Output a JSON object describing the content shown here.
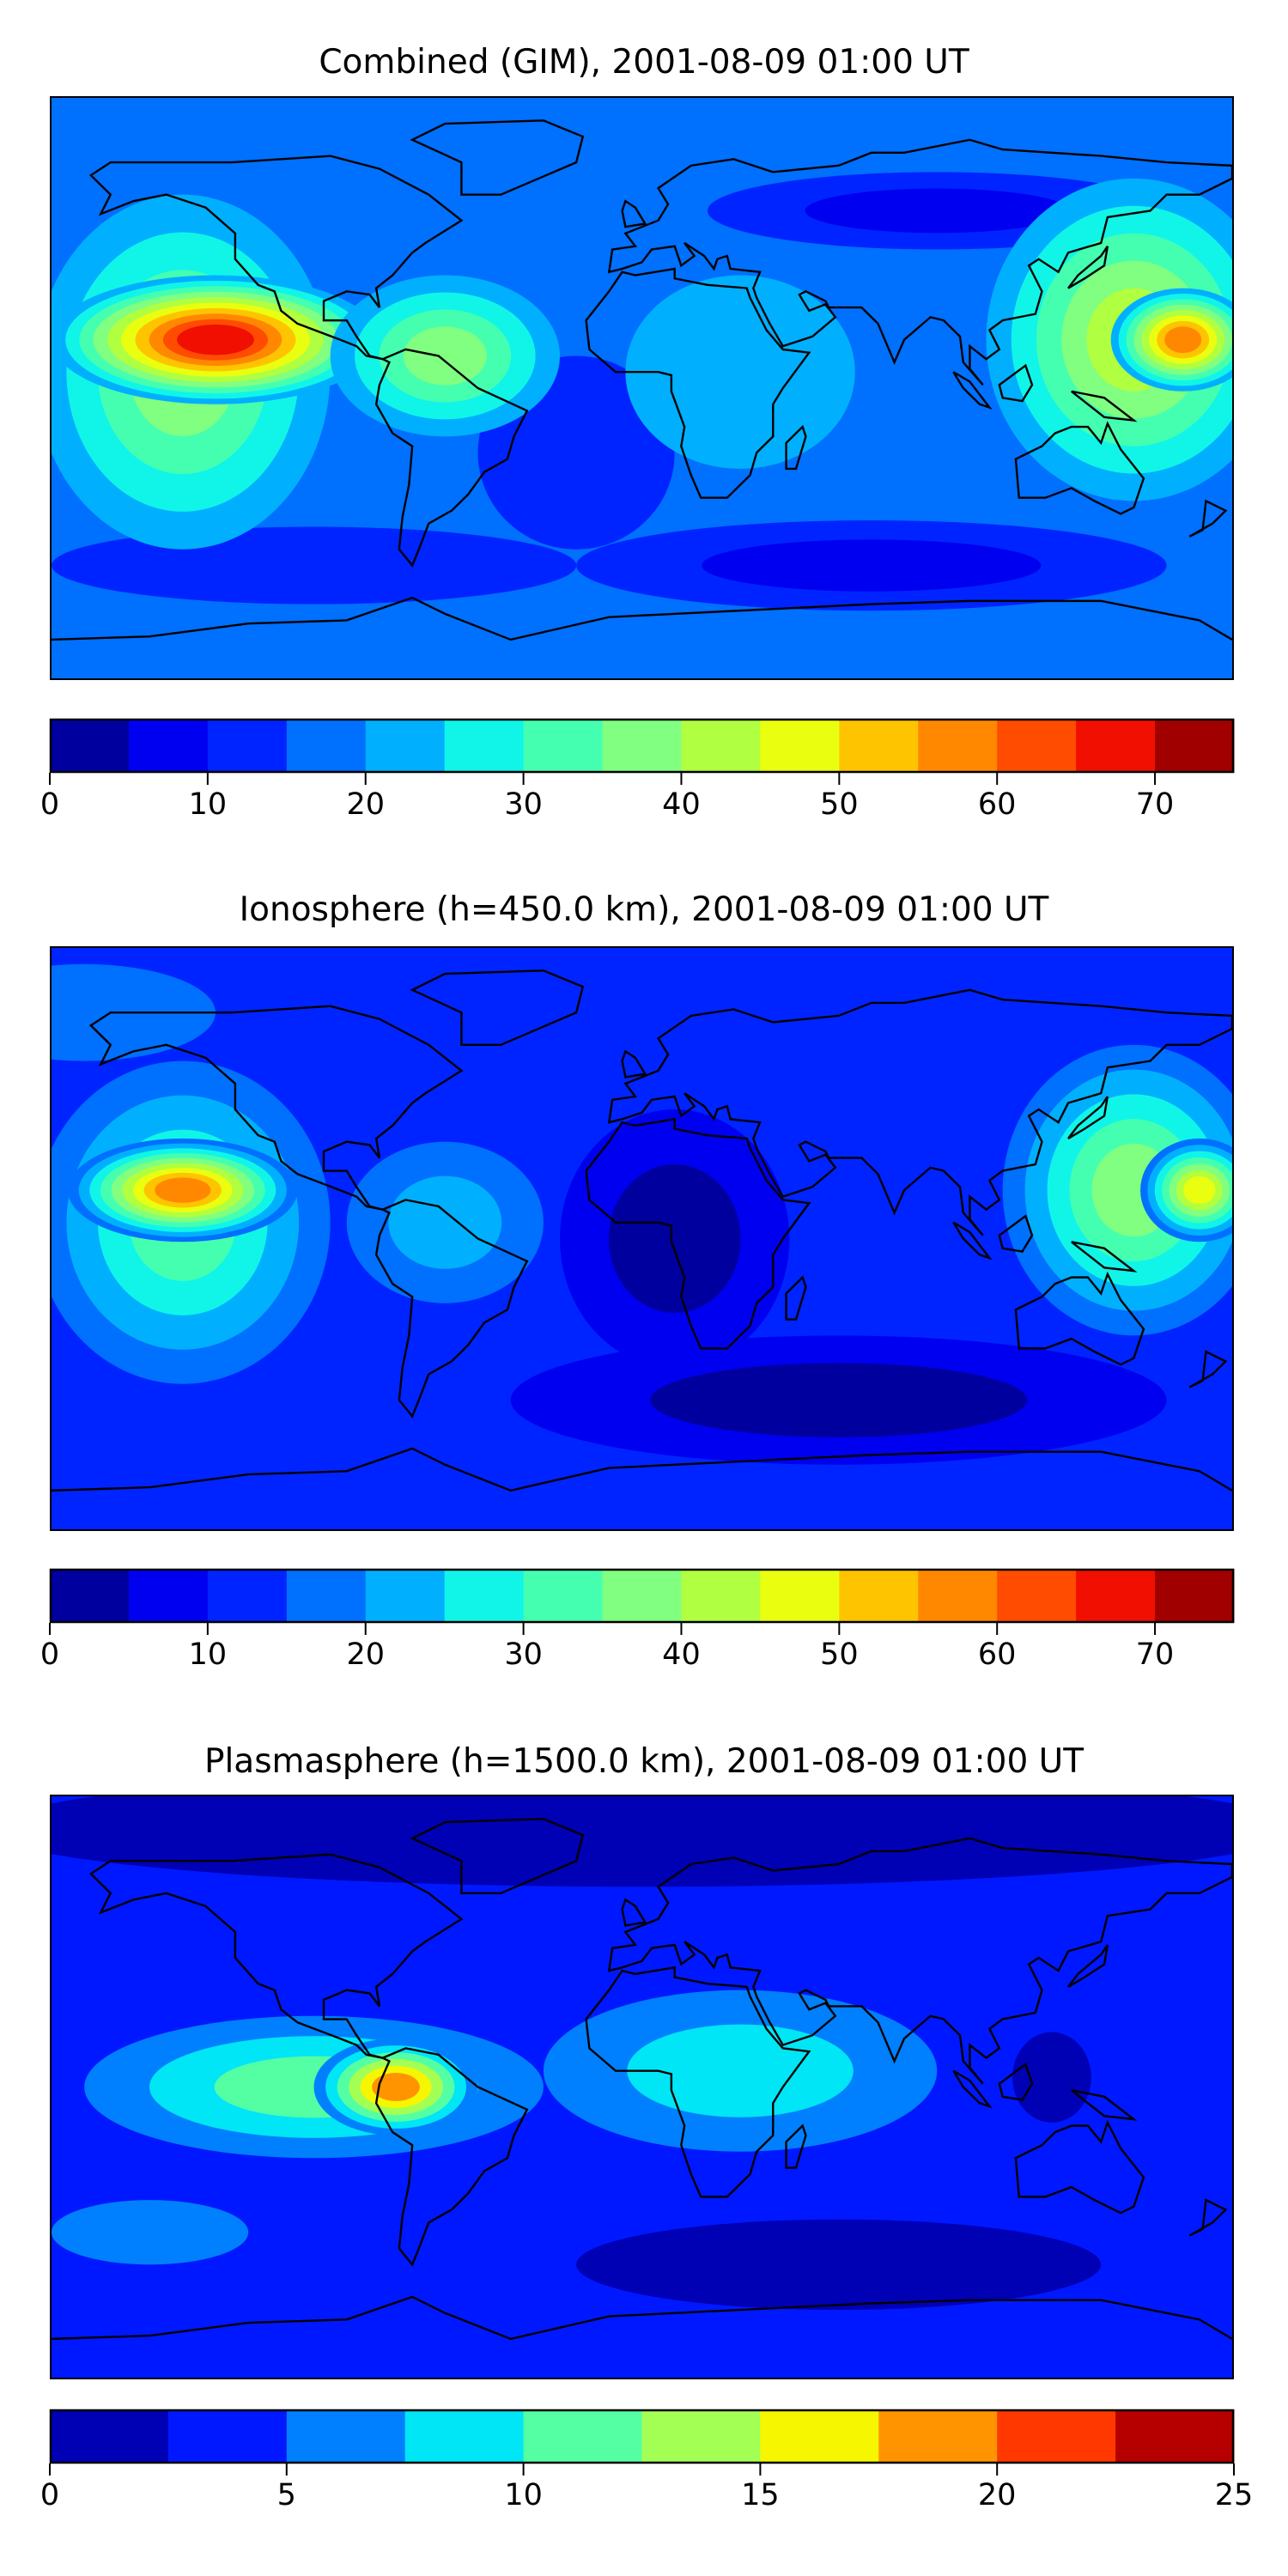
{
  "chart_data": [
    {
      "type": "heatmap",
      "title": "Combined (GIM), 2001-08-09 01:00 UT",
      "xlabel": "",
      "ylabel": "",
      "lon_range": [
        -180,
        180
      ],
      "lat_range": [
        -90,
        90
      ],
      "colorbar": {
        "levels": [
          0,
          5,
          10,
          15,
          20,
          25,
          30,
          35,
          40,
          45,
          50,
          55,
          60,
          65,
          70,
          75
        ],
        "ticks": [
          "0",
          "10",
          "20",
          "30",
          "40",
          "50",
          "60",
          "70"
        ],
        "tick_values": [
          0,
          10,
          20,
          30,
          40,
          50,
          60,
          70
        ],
        "colors": [
          "#00009f",
          "#0000f0",
          "#0024ff",
          "#0070ff",
          "#00b0ff",
          "#10f5e8",
          "#45ffb0",
          "#80ff80",
          "#b0ff40",
          "#eaff10",
          "#ffc400",
          "#ff8800",
          "#ff4c00",
          "#f00f00",
          "#a00000"
        ]
      },
      "base_value": 17,
      "features": [
        {
          "lon": 90,
          "lat": 55,
          "value": 8,
          "spread_deg": [
            70,
            12
          ]
        },
        {
          "lon": 70,
          "lat": -55,
          "value": 6,
          "spread_deg": [
            90,
            14
          ]
        },
        {
          "lon": -100,
          "lat": -55,
          "value": 12,
          "spread_deg": [
            80,
            12
          ]
        },
        {
          "lon": -20,
          "lat": -20,
          "value": 13,
          "spread_deg": [
            30,
            30
          ]
        },
        {
          "lon": 30,
          "lat": 5,
          "value": 24,
          "spread_deg": [
            35,
            30
          ]
        },
        {
          "lon": -140,
          "lat": 5,
          "value": 35,
          "spread_deg": [
            45,
            55
          ]
        },
        {
          "lon": -130,
          "lat": 15,
          "value": 68,
          "spread_deg": [
            50,
            20
          ]
        },
        {
          "lon": -60,
          "lat": 10,
          "value": 38,
          "spread_deg": [
            35,
            25
          ]
        },
        {
          "lon": 150,
          "lat": 15,
          "value": 40,
          "spread_deg": [
            45,
            50
          ]
        },
        {
          "lon": 165,
          "lat": 15,
          "value": 56,
          "spread_deg": [
            22,
            16
          ]
        }
      ]
    },
    {
      "type": "heatmap",
      "title": "Ionosphere  (h=450.0 km), 2001-08-09 01:00 UT",
      "xlabel": "",
      "ylabel": "",
      "lon_range": [
        -180,
        180
      ],
      "lat_range": [
        -90,
        90
      ],
      "colorbar": {
        "levels": [
          0,
          5,
          10,
          15,
          20,
          25,
          30,
          35,
          40,
          45,
          50,
          55,
          60,
          65,
          70,
          75
        ],
        "ticks": [
          "0",
          "10",
          "20",
          "30",
          "40",
          "50",
          "60",
          "70"
        ],
        "tick_values": [
          0,
          10,
          20,
          30,
          40,
          50,
          60,
          70
        ],
        "colors": [
          "#00009f",
          "#0000f0",
          "#0024ff",
          "#0070ff",
          "#00b0ff",
          "#10f5e8",
          "#45ffb0",
          "#80ff80",
          "#b0ff40",
          "#eaff10",
          "#ffc400",
          "#ff8800",
          "#ff4c00",
          "#f00f00",
          "#a00000"
        ]
      },
      "base_value": 12,
      "features": [
        {
          "lon": 60,
          "lat": -50,
          "value": 3,
          "spread_deg": [
            100,
            20
          ]
        },
        {
          "lon": 10,
          "lat": 0,
          "value": 4,
          "spread_deg": [
            35,
            40
          ]
        },
        {
          "lon": -170,
          "lat": 70,
          "value": 18,
          "spread_deg": [
            40,
            15
          ]
        },
        {
          "lon": -140,
          "lat": 5,
          "value": 30,
          "spread_deg": [
            45,
            50
          ]
        },
        {
          "lon": -140,
          "lat": 15,
          "value": 56,
          "spread_deg": [
            35,
            16
          ]
        },
        {
          "lon": -60,
          "lat": 5,
          "value": 24,
          "spread_deg": [
            30,
            25
          ]
        },
        {
          "lon": 150,
          "lat": 15,
          "value": 36,
          "spread_deg": [
            40,
            45
          ]
        },
        {
          "lon": 170,
          "lat": 15,
          "value": 48,
          "spread_deg": [
            18,
            16
          ]
        }
      ]
    },
    {
      "type": "heatmap",
      "title": "Plasmasphere (h=1500.0 km), 2001-08-09 01:00 UT",
      "xlabel": "",
      "ylabel": "",
      "lon_range": [
        -180,
        180
      ],
      "lat_range": [
        -90,
        90
      ],
      "colorbar": {
        "levels": [
          0,
          2.5,
          5,
          7.5,
          10,
          12.5,
          15,
          17.5,
          20,
          22.5,
          25
        ],
        "ticks": [
          "0",
          "5",
          "10",
          "15",
          "20",
          "25"
        ],
        "tick_values": [
          0,
          5,
          10,
          15,
          20,
          25
        ],
        "colors": [
          "#0000b5",
          "#0018ff",
          "#0080ff",
          "#00e6f6",
          "#54ffa4",
          "#a4ff54",
          "#f6f600",
          "#ff9400",
          "#ff3800",
          "#b60000"
        ]
      },
      "base_value": 4,
      "features": [
        {
          "lon": 0,
          "lat": 80,
          "value": 1,
          "spread_deg": [
            200,
            18
          ]
        },
        {
          "lon": 60,
          "lat": -55,
          "value": 1.5,
          "spread_deg": [
            80,
            14
          ]
        },
        {
          "lon": -150,
          "lat": -45,
          "value": 7,
          "spread_deg": [
            30,
            10
          ]
        },
        {
          "lon": 30,
          "lat": 5,
          "value": 9,
          "spread_deg": [
            60,
            25
          ]
        },
        {
          "lon": -100,
          "lat": 0,
          "value": 10,
          "spread_deg": [
            70,
            22
          ]
        },
        {
          "lon": -75,
          "lat": 0,
          "value": 19,
          "spread_deg": [
            25,
            15
          ]
        },
        {
          "lon": 125,
          "lat": 3,
          "value": 2,
          "spread_deg": [
            12,
            14
          ]
        }
      ]
    }
  ],
  "coastlines": {
    "north_america": [
      [
        -168,
        66
      ],
      [
        -162,
        70
      ],
      [
        -140,
        70
      ],
      [
        -125,
        70
      ],
      [
        -95,
        72
      ],
      [
        -80,
        68
      ],
      [
        -65,
        60
      ],
      [
        -55,
        52
      ],
      [
        -66,
        45
      ],
      [
        -70,
        42
      ],
      [
        -76,
        35
      ],
      [
        -81,
        31
      ],
      [
        -80,
        25
      ],
      [
        -83,
        29
      ],
      [
        -90,
        30
      ],
      [
        -97,
        27
      ],
      [
        -97,
        21
      ],
      [
        -90,
        21
      ],
      [
        -87,
        16
      ],
      [
        -83,
        10
      ],
      [
        -79,
        9
      ],
      [
        -84,
        10
      ],
      [
        -87,
        13
      ],
      [
        -92,
        15
      ],
      [
        -105,
        20
      ],
      [
        -110,
        24
      ],
      [
        -112,
        30
      ],
      [
        -117,
        32
      ],
      [
        -124,
        40
      ],
      [
        -124,
        48
      ],
      [
        -133,
        56
      ],
      [
        -145,
        60
      ],
      [
        -155,
        58
      ],
      [
        -165,
        54
      ],
      [
        -162,
        60
      ]
    ],
    "greenland": [
      [
        -55,
        60
      ],
      [
        -43,
        60
      ],
      [
        -20,
        70
      ],
      [
        -18,
        78
      ],
      [
        -30,
        83
      ],
      [
        -60,
        82
      ],
      [
        -70,
        77
      ],
      [
        -55,
        70
      ]
    ],
    "south_america": [
      [
        -79,
        9
      ],
      [
        -72,
        12
      ],
      [
        -62,
        10
      ],
      [
        -50,
        0
      ],
      [
        -35,
        -7
      ],
      [
        -39,
        -15
      ],
      [
        -41,
        -22
      ],
      [
        -48,
        -26
      ],
      [
        -53,
        -33
      ],
      [
        -58,
        -38
      ],
      [
        -65,
        -42
      ],
      [
        -68,
        -50
      ],
      [
        -70,
        -55
      ],
      [
        -74,
        -50
      ],
      [
        -73,
        -40
      ],
      [
        -71,
        -30
      ],
      [
        -70,
        -18
      ],
      [
        -76,
        -14
      ],
      [
        -81,
        -5
      ],
      [
        -80,
        1
      ],
      [
        -77,
        8
      ]
    ],
    "eurasia": [
      [
        -10,
        36
      ],
      [
        -9,
        43
      ],
      [
        -2,
        44
      ],
      [
        -5,
        48
      ],
      [
        5,
        52
      ],
      [
        8,
        57
      ],
      [
        5,
        62
      ],
      [
        15,
        69
      ],
      [
        28,
        71
      ],
      [
        40,
        67
      ],
      [
        60,
        69
      ],
      [
        70,
        73
      ],
      [
        80,
        73
      ],
      [
        100,
        77
      ],
      [
        110,
        74
      ],
      [
        140,
        72
      ],
      [
        160,
        70
      ],
      [
        180,
        69
      ],
      [
        180,
        65
      ],
      [
        170,
        60
      ],
      [
        160,
        60
      ],
      [
        155,
        55
      ],
      [
        142,
        53
      ],
      [
        140,
        45
      ],
      [
        130,
        42
      ],
      [
        127,
        36
      ],
      [
        121,
        40
      ],
      [
        118,
        38
      ],
      [
        122,
        30
      ],
      [
        120,
        23
      ],
      [
        110,
        21
      ],
      [
        106,
        18
      ],
      [
        109,
        12
      ],
      [
        105,
        9
      ],
      [
        100,
        13
      ],
      [
        100,
        6
      ],
      [
        104,
        1
      ],
      [
        98,
        8
      ],
      [
        97,
        16
      ],
      [
        92,
        21
      ],
      [
        88,
        22
      ],
      [
        80,
        15
      ],
      [
        77,
        8
      ],
      [
        72,
        20
      ],
      [
        67,
        25
      ],
      [
        57,
        25
      ],
      [
        56,
        27
      ],
      [
        50,
        30
      ],
      [
        48,
        29
      ],
      [
        51,
        24
      ],
      [
        56,
        26
      ],
      [
        59,
        22
      ],
      [
        52,
        16
      ],
      [
        43,
        13
      ],
      [
        39,
        20
      ],
      [
        35,
        28
      ],
      [
        34,
        31
      ],
      [
        36,
        36
      ],
      [
        27,
        37
      ],
      [
        26,
        41
      ],
      [
        23,
        40
      ],
      [
        22,
        37
      ],
      [
        19,
        41
      ],
      [
        13,
        45
      ],
      [
        16,
        41
      ],
      [
        12,
        38
      ],
      [
        10,
        44
      ],
      [
        3,
        43
      ],
      [
        0,
        39
      ],
      [
        -6,
        37
      ]
    ],
    "africa": [
      [
        -17,
        21
      ],
      [
        -16,
        12
      ],
      [
        -8,
        5
      ],
      [
        5,
        5
      ],
      [
        9,
        4
      ],
      [
        9,
        -1
      ],
      [
        13,
        -12
      ],
      [
        12,
        -18
      ],
      [
        15,
        -27
      ],
      [
        18,
        -34
      ],
      [
        26,
        -34
      ],
      [
        33,
        -27
      ],
      [
        35,
        -20
      ],
      [
        40,
        -15
      ],
      [
        40,
        -5
      ],
      [
        43,
        0
      ],
      [
        51,
        11
      ],
      [
        43,
        12
      ],
      [
        38,
        18
      ],
      [
        33,
        28
      ],
      [
        32,
        31
      ],
      [
        20,
        32
      ],
      [
        10,
        34
      ],
      [
        10,
        37
      ],
      [
        -2,
        35
      ],
      [
        -6,
        36
      ],
      [
        -10,
        30
      ]
    ],
    "australia": [
      [
        114,
        -22
      ],
      [
        115,
        -34
      ],
      [
        123,
        -34
      ],
      [
        131,
        -31
      ],
      [
        138,
        -35
      ],
      [
        146,
        -39
      ],
      [
        150,
        -37
      ],
      [
        153,
        -28
      ],
      [
        146,
        -19
      ],
      [
        142,
        -11
      ],
      [
        140,
        -17
      ],
      [
        136,
        -12
      ],
      [
        131,
        -12
      ],
      [
        126,
        -14
      ],
      [
        122,
        -18
      ]
    ],
    "britain": [
      [
        -5,
        50
      ],
      [
        1,
        51
      ],
      [
        -2,
        56
      ],
      [
        -5,
        58
      ],
      [
        -6,
        55
      ]
    ],
    "japan": [
      [
        130,
        31
      ],
      [
        135,
        34
      ],
      [
        141,
        38
      ],
      [
        142,
        44
      ],
      [
        140,
        41
      ],
      [
        133,
        35
      ]
    ],
    "borneo": [
      [
        109,
        1
      ],
      [
        117,
        7
      ],
      [
        119,
        1
      ],
      [
        116,
        -4
      ],
      [
        110,
        -3
      ]
    ],
    "sumatra": [
      [
        95,
        5
      ],
      [
        100,
        2
      ],
      [
        106,
        -6
      ],
      [
        103,
        -5
      ],
      [
        98,
        0
      ]
    ],
    "new_guinea": [
      [
        131,
        -1
      ],
      [
        141,
        -3
      ],
      [
        150,
        -10
      ],
      [
        141,
        -9
      ]
    ],
    "madagascar": [
      [
        44,
        -25
      ],
      [
        47,
        -25
      ],
      [
        50,
        -15
      ],
      [
        49,
        -12
      ],
      [
        44,
        -17
      ]
    ],
    "new_zealand": [
      [
        172,
        -35
      ],
      [
        178,
        -38
      ],
      [
        174,
        -42
      ],
      [
        167,
        -46
      ],
      [
        171,
        -44
      ]
    ],
    "antarctica": [
      [
        -180,
        -78
      ],
      [
        -150,
        -77
      ],
      [
        -120,
        -73
      ],
      [
        -90,
        -72
      ],
      [
        -70,
        -65
      ],
      [
        -60,
        -70
      ],
      [
        -40,
        -78
      ],
      [
        -10,
        -71
      ],
      [
        30,
        -69
      ],
      [
        70,
        -67
      ],
      [
        100,
        -66
      ],
      [
        140,
        -66
      ],
      [
        170,
        -72
      ],
      [
        180,
        -78
      ]
    ]
  }
}
